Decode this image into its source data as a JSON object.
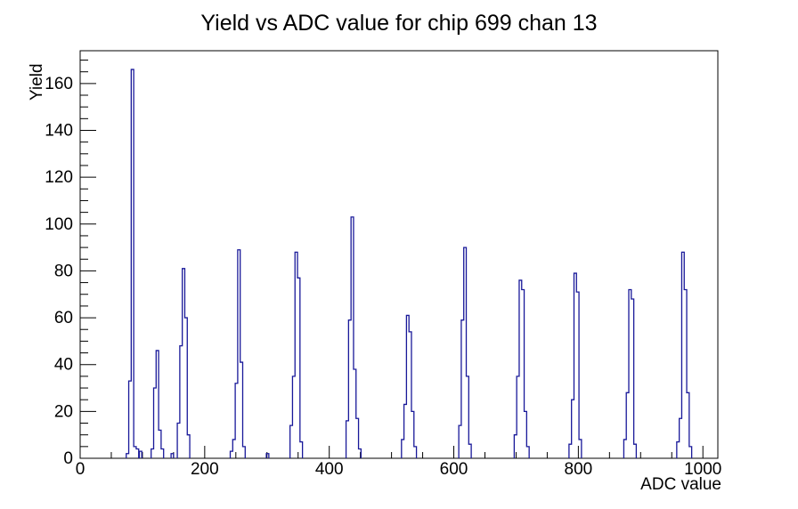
{
  "window": {
    "background": "#ffffff"
  },
  "chart_data": {
    "type": "bar",
    "subtype": "histogram-step-outline",
    "title": "Yield vs ADC value for chip 699 chan 13",
    "xlabel": "ADC value",
    "ylabel": "Yield",
    "xlim": [
      0,
      1024
    ],
    "ylim": [
      0,
      174
    ],
    "x_major_ticks": [
      0,
      200,
      400,
      600,
      800,
      1000
    ],
    "x_minor_step": 50,
    "y_major_ticks": [
      0,
      20,
      40,
      60,
      80,
      100,
      120,
      140,
      160
    ],
    "y_minor_step": 5,
    "grid": false,
    "legend": false,
    "line_color": "#181899",
    "axis_color": "#000000",
    "bin_width": 4,
    "peaks": [
      {
        "adc": 84,
        "yield": 166
      },
      {
        "adc": 124,
        "yield": 46
      },
      {
        "adc": 166,
        "yield": 81
      },
      {
        "adc": 255,
        "yield": 89
      },
      {
        "adc": 347,
        "yield": 88
      },
      {
        "adc": 437,
        "yield": 103
      },
      {
        "adc": 526,
        "yield": 61
      },
      {
        "adc": 618,
        "yield": 90
      },
      {
        "adc": 707,
        "yield": 76
      },
      {
        "adc": 795,
        "yield": 79
      },
      {
        "adc": 883,
        "yield": 72
      },
      {
        "adc": 968,
        "yield": 88
      }
    ],
    "bins": [
      [
        76,
        2
      ],
      [
        80,
        33
      ],
      [
        84,
        166
      ],
      [
        88,
        5
      ],
      [
        92,
        4
      ],
      [
        97,
        3
      ],
      [
        116,
        4
      ],
      [
        120,
        30
      ],
      [
        124,
        46
      ],
      [
        128,
        12
      ],
      [
        132,
        4
      ],
      [
        148,
        2
      ],
      [
        158,
        15
      ],
      [
        162,
        48
      ],
      [
        166,
        81
      ],
      [
        170,
        60
      ],
      [
        174,
        10
      ],
      [
        243,
        3
      ],
      [
        247,
        8
      ],
      [
        251,
        32
      ],
      [
        255,
        89
      ],
      [
        259,
        41
      ],
      [
        263,
        5
      ],
      [
        301,
        2
      ],
      [
        339,
        14
      ],
      [
        343,
        35
      ],
      [
        347,
        88
      ],
      [
        351,
        77
      ],
      [
        355,
        7
      ],
      [
        429,
        16
      ],
      [
        433,
        59
      ],
      [
        437,
        103
      ],
      [
        441,
        38
      ],
      [
        445,
        17
      ],
      [
        449,
        4
      ],
      [
        518,
        8
      ],
      [
        522,
        23
      ],
      [
        526,
        61
      ],
      [
        530,
        54
      ],
      [
        534,
        20
      ],
      [
        538,
        5
      ],
      [
        610,
        14
      ],
      [
        614,
        59
      ],
      [
        618,
        90
      ],
      [
        622,
        35
      ],
      [
        626,
        6
      ],
      [
        699,
        10
      ],
      [
        703,
        35
      ],
      [
        707,
        76
      ],
      [
        711,
        72
      ],
      [
        715,
        20
      ],
      [
        719,
        5
      ],
      [
        787,
        6
      ],
      [
        791,
        25
      ],
      [
        795,
        79
      ],
      [
        799,
        71
      ],
      [
        803,
        8
      ],
      [
        875,
        8
      ],
      [
        879,
        28
      ],
      [
        883,
        72
      ],
      [
        887,
        68
      ],
      [
        891,
        6
      ],
      [
        960,
        7
      ],
      [
        964,
        17
      ],
      [
        968,
        88
      ],
      [
        972,
        72
      ],
      [
        976,
        28
      ],
      [
        980,
        5
      ]
    ]
  }
}
